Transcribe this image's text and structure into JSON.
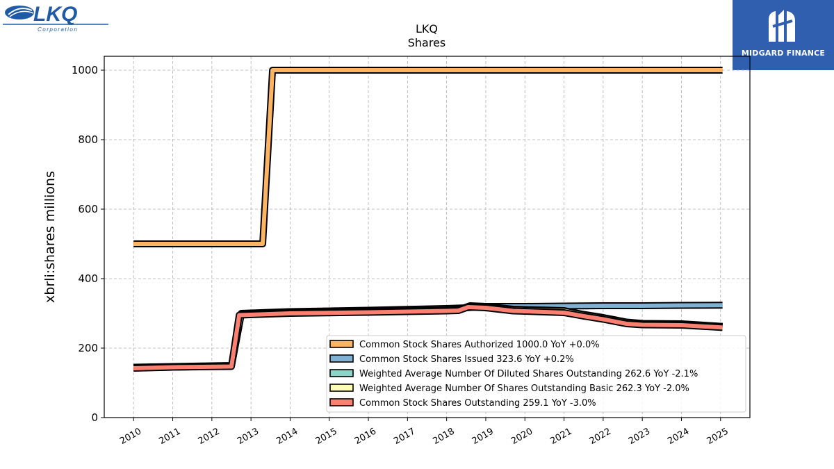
{
  "logos": {
    "left_name": "LKQ",
    "left_sub": "Corporation",
    "right_name": "MIDGARD FINANCE"
  },
  "chart_data": {
    "type": "line",
    "title": "LKQ",
    "subtitle": "Shares",
    "xlabel": "",
    "ylabel": "xbrli:shares millions",
    "xlim": [
      2009.25,
      2025.75
    ],
    "ylim": [
      0,
      1040
    ],
    "yticks": [
      0,
      200,
      400,
      600,
      800,
      1000
    ],
    "xticks": [
      "2010",
      "2011",
      "2012",
      "2013",
      "2014",
      "2015",
      "2016",
      "2017",
      "2018",
      "2019",
      "2020",
      "2021",
      "2022",
      "2023",
      "2024",
      "2025"
    ],
    "grid": true,
    "legend_position": "lower-right",
    "series": [
      {
        "name": "Common Stock Shares Authorized  1000.0 YoY +0.0%",
        "color": "#fdb462",
        "points": [
          [
            2010.0,
            500
          ],
          [
            2013.3,
            500
          ],
          [
            2013.55,
            1000
          ],
          [
            2025.05,
            1000
          ]
        ]
      },
      {
        "name": "Common Stock Shares Issued  323.6 YoY +0.2%",
        "color": "#80b1d3",
        "points": [
          [
            2010.0,
            145
          ],
          [
            2012.5,
            150
          ],
          [
            2012.75,
            300
          ],
          [
            2014.0,
            305
          ],
          [
            2016.0,
            309
          ],
          [
            2018.0,
            314
          ],
          [
            2018.5,
            316
          ],
          [
            2019.0,
            320
          ],
          [
            2020.0,
            320
          ],
          [
            2021.0,
            321
          ],
          [
            2022.0,
            322
          ],
          [
            2023.0,
            322
          ],
          [
            2024.0,
            323
          ],
          [
            2025.05,
            323.6
          ]
        ]
      },
      {
        "name": "Weighted Average Number Of Diluted Shares Outstanding  262.6 YoY -2.1%",
        "color": "#8dd3c7",
        "points": [
          [
            2010.0,
            144
          ],
          [
            2012.5,
            149
          ],
          [
            2012.75,
            298
          ],
          [
            2014.0,
            303
          ],
          [
            2016.0,
            306
          ],
          [
            2018.0,
            310
          ],
          [
            2018.35,
            312
          ],
          [
            2018.6,
            322
          ],
          [
            2019.0,
            320
          ],
          [
            2019.7,
            312
          ],
          [
            2020.0,
            311
          ],
          [
            2021.0,
            308
          ],
          [
            2021.5,
            297
          ],
          [
            2022.0,
            288
          ],
          [
            2022.6,
            275
          ],
          [
            2023.0,
            271
          ],
          [
            2024.0,
            270
          ],
          [
            2025.05,
            262.6
          ]
        ]
      },
      {
        "name": "Weighted Average Number Of Shares Outstanding Basic  262.3 YoY -2.0%",
        "color": "#ffffb3",
        "points": [
          [
            2010.0,
            143
          ],
          [
            2012.5,
            148
          ],
          [
            2012.75,
            297
          ],
          [
            2014.0,
            302
          ],
          [
            2016.0,
            305
          ],
          [
            2018.0,
            309
          ],
          [
            2018.35,
            311
          ],
          [
            2018.6,
            321
          ],
          [
            2019.0,
            319
          ],
          [
            2019.7,
            311
          ],
          [
            2020.0,
            310
          ],
          [
            2021.0,
            307
          ],
          [
            2021.5,
            296
          ],
          [
            2022.0,
            287
          ],
          [
            2022.6,
            274
          ],
          [
            2023.0,
            270
          ],
          [
            2024.0,
            269
          ],
          [
            2025.05,
            262.3
          ]
        ]
      },
      {
        "name": "Common Stock Shares Outstanding  259.1 YoY -3.0%",
        "color": "#fb8072",
        "points": [
          [
            2010.0,
            142
          ],
          [
            2011.0,
            145
          ],
          [
            2012.5,
            147
          ],
          [
            2012.7,
            295
          ],
          [
            2014.0,
            300
          ],
          [
            2016.0,
            303
          ],
          [
            2018.0,
            307
          ],
          [
            2018.3,
            308
          ],
          [
            2018.55,
            318
          ],
          [
            2019.0,
            316
          ],
          [
            2019.7,
            307
          ],
          [
            2020.0,
            306
          ],
          [
            2021.0,
            302
          ],
          [
            2021.5,
            292
          ],
          [
            2022.0,
            283
          ],
          [
            2022.6,
            270
          ],
          [
            2023.0,
            267
          ],
          [
            2024.0,
            266
          ],
          [
            2025.05,
            259.1
          ]
        ]
      }
    ]
  }
}
